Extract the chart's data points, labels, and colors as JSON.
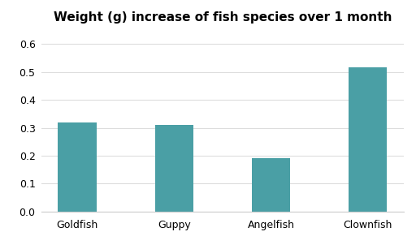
{
  "title": "Weight (g) increase of fish species over 1 month",
  "categories": [
    "Goldfish",
    "Guppy",
    "Angelfish",
    "Clownfish"
  ],
  "values": [
    0.32,
    0.31,
    0.19,
    0.515
  ],
  "bar_color": "#4a9fa5",
  "ylim": [
    0.0,
    0.65
  ],
  "yticks": [
    0.0,
    0.1,
    0.2,
    0.3,
    0.4,
    0.5,
    0.6
  ],
  "background_color": "#ffffff",
  "title_fontsize": 11,
  "tick_fontsize": 9,
  "bar_width": 0.4
}
